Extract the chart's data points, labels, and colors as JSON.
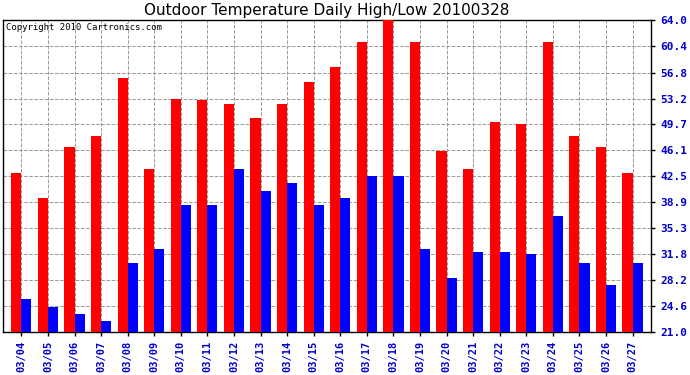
{
  "title": "Outdoor Temperature Daily High/Low 20100328",
  "copyright": "Copyright 2010 Cartronics.com",
  "dates": [
    "03/04",
    "03/05",
    "03/06",
    "03/07",
    "03/08",
    "03/09",
    "03/10",
    "03/11",
    "03/12",
    "03/13",
    "03/14",
    "03/15",
    "03/16",
    "03/17",
    "03/18",
    "03/19",
    "03/20",
    "03/21",
    "03/22",
    "03/23",
    "03/24",
    "03/25",
    "03/26",
    "03/27"
  ],
  "highs": [
    43.0,
    39.5,
    46.5,
    48.0,
    56.0,
    43.5,
    53.2,
    53.0,
    52.5,
    50.5,
    52.5,
    55.5,
    57.5,
    61.0,
    64.5,
    61.0,
    46.0,
    43.5,
    50.0,
    49.7,
    61.0,
    48.0,
    46.5,
    43.0
  ],
  "lows": [
    25.5,
    24.5,
    23.5,
    22.5,
    30.5,
    32.5,
    38.5,
    38.5,
    43.5,
    40.5,
    41.5,
    38.5,
    39.5,
    42.5,
    42.5,
    32.5,
    28.5,
    32.0,
    32.0,
    31.8,
    37.0,
    30.5,
    27.5,
    30.5
  ],
  "high_color": "#ff0000",
  "low_color": "#0000ff",
  "bg_color": "#ffffff",
  "grid_color": "#999999",
  "yticks": [
    21.0,
    24.6,
    28.2,
    31.8,
    35.3,
    38.9,
    42.5,
    46.1,
    49.7,
    53.2,
    56.8,
    60.4,
    64.0
  ],
  "ylim": [
    21.0,
    64.0
  ],
  "bar_width": 0.38
}
